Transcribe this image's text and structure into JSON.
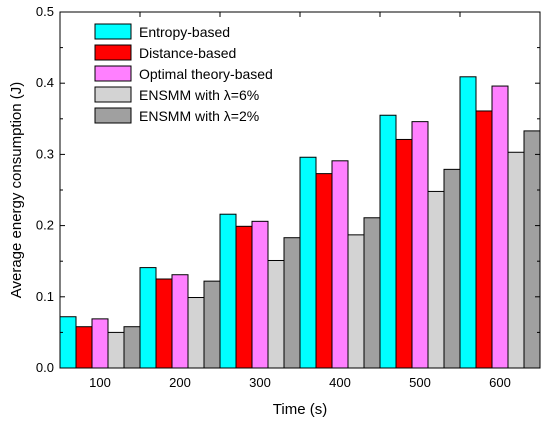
{
  "chart_data": {
    "type": "bar",
    "xlabel": "Time (s)",
    "ylabel": "Average energy consumption (J)",
    "ylim": [
      0,
      0.5
    ],
    "yticks": [
      "0.0",
      "0.1",
      "0.2",
      "0.3",
      "0.4",
      "0.5"
    ],
    "categories": [
      "100",
      "200",
      "300",
      "400",
      "500",
      "600"
    ],
    "legend_position": "top-left",
    "grid": false,
    "series": [
      {
        "name": "Entropy-based",
        "color": "#00ffff",
        "values": [
          0.072,
          0.141,
          0.216,
          0.296,
          0.355,
          0.409
        ]
      },
      {
        "name": "Distance-based",
        "color": "#ff0000",
        "values": [
          0.058,
          0.125,
          0.199,
          0.273,
          0.321,
          0.361
        ]
      },
      {
        "name": "Optimal theory-based",
        "color": "#ff80ff",
        "values": [
          0.069,
          0.131,
          0.206,
          0.291,
          0.346,
          0.396
        ]
      },
      {
        "name": "ENSMM with λ=6%",
        "color": "#d3d3d3",
        "values": [
          0.05,
          0.099,
          0.151,
          0.187,
          0.248,
          0.303
        ]
      },
      {
        "name": "ENSMM with λ=2%",
        "color": "#a0a0a0",
        "values": [
          0.058,
          0.122,
          0.183,
          0.211,
          0.279,
          0.333
        ]
      }
    ]
  }
}
